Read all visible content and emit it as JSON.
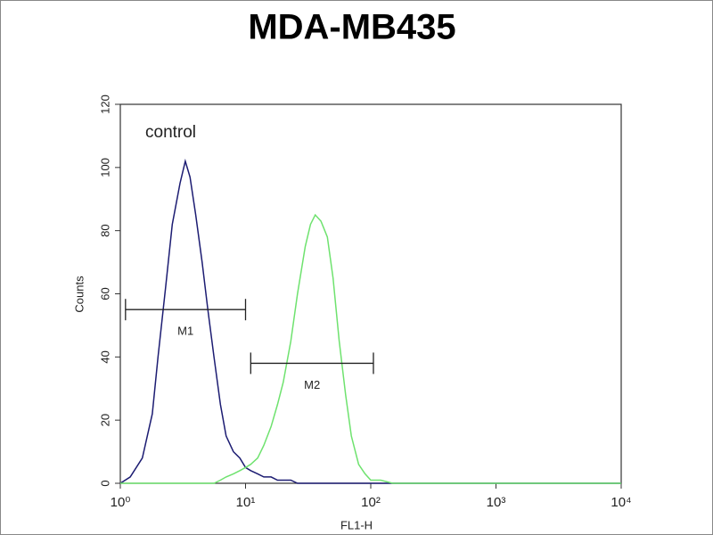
{
  "chart_data": {
    "type": "line",
    "title": "MDA-MB435",
    "x_label": "FL1-H",
    "y_label": "Counts",
    "xscale": "log",
    "x": [
      1,
      1.2,
      1.5,
      1.8,
      2,
      2.3,
      2.6,
      3,
      3.3,
      3.6,
      4,
      4.5,
      5,
      5.6,
      6.3,
      7,
      8,
      9,
      10,
      11,
      12.5,
      14,
      16,
      18,
      20,
      23,
      26,
      30,
      33,
      36,
      40,
      45,
      50,
      56,
      63,
      70,
      80,
      90,
      100,
      120,
      150,
      200,
      300,
      500,
      1000,
      2000,
      5000,
      10000
    ],
    "series": [
      {
        "name": "control",
        "color": "#1c1c72",
        "values": [
          0,
          2,
          8,
          22,
          40,
          62,
          82,
          95,
          102,
          97,
          85,
          70,
          55,
          40,
          25,
          15,
          10,
          8,
          5,
          4,
          3,
          2,
          2,
          1,
          1,
          1,
          0,
          0,
          0,
          0,
          0,
          0,
          0,
          0,
          0,
          0,
          0,
          0,
          0,
          0,
          0,
          0,
          0,
          0,
          0,
          0,
          0,
          0
        ]
      },
      {
        "color": "#6ee26e",
        "values": [
          0,
          0,
          0,
          0,
          0,
          0,
          0,
          0,
          0,
          0,
          0,
          0,
          0,
          0,
          1,
          2,
          3,
          4,
          5,
          6,
          8,
          12,
          18,
          25,
          32,
          45,
          60,
          75,
          82,
          85,
          83,
          78,
          65,
          45,
          28,
          15,
          6,
          3,
          1,
          1,
          0,
          0,
          0,
          0,
          0,
          0,
          0,
          0
        ]
      }
    ],
    "markers": [
      {
        "label": "M1",
        "range": [
          1.1,
          10
        ],
        "y": 55
      },
      {
        "label": "M2",
        "range": [
          11,
          105
        ],
        "y": 38
      }
    ],
    "xlim": [
      1,
      10000
    ],
    "xticks": [
      {
        "value": 1,
        "label": "10⁰"
      },
      {
        "value": 10,
        "label": "10¹"
      },
      {
        "value": 100,
        "label": "10²"
      },
      {
        "value": 1000,
        "label": "10³"
      },
      {
        "value": 10000,
        "label": "10⁴"
      }
    ],
    "ylim": [
      0,
      120
    ],
    "yticks": [
      0,
      20,
      40,
      60,
      80,
      100,
      120
    ]
  }
}
